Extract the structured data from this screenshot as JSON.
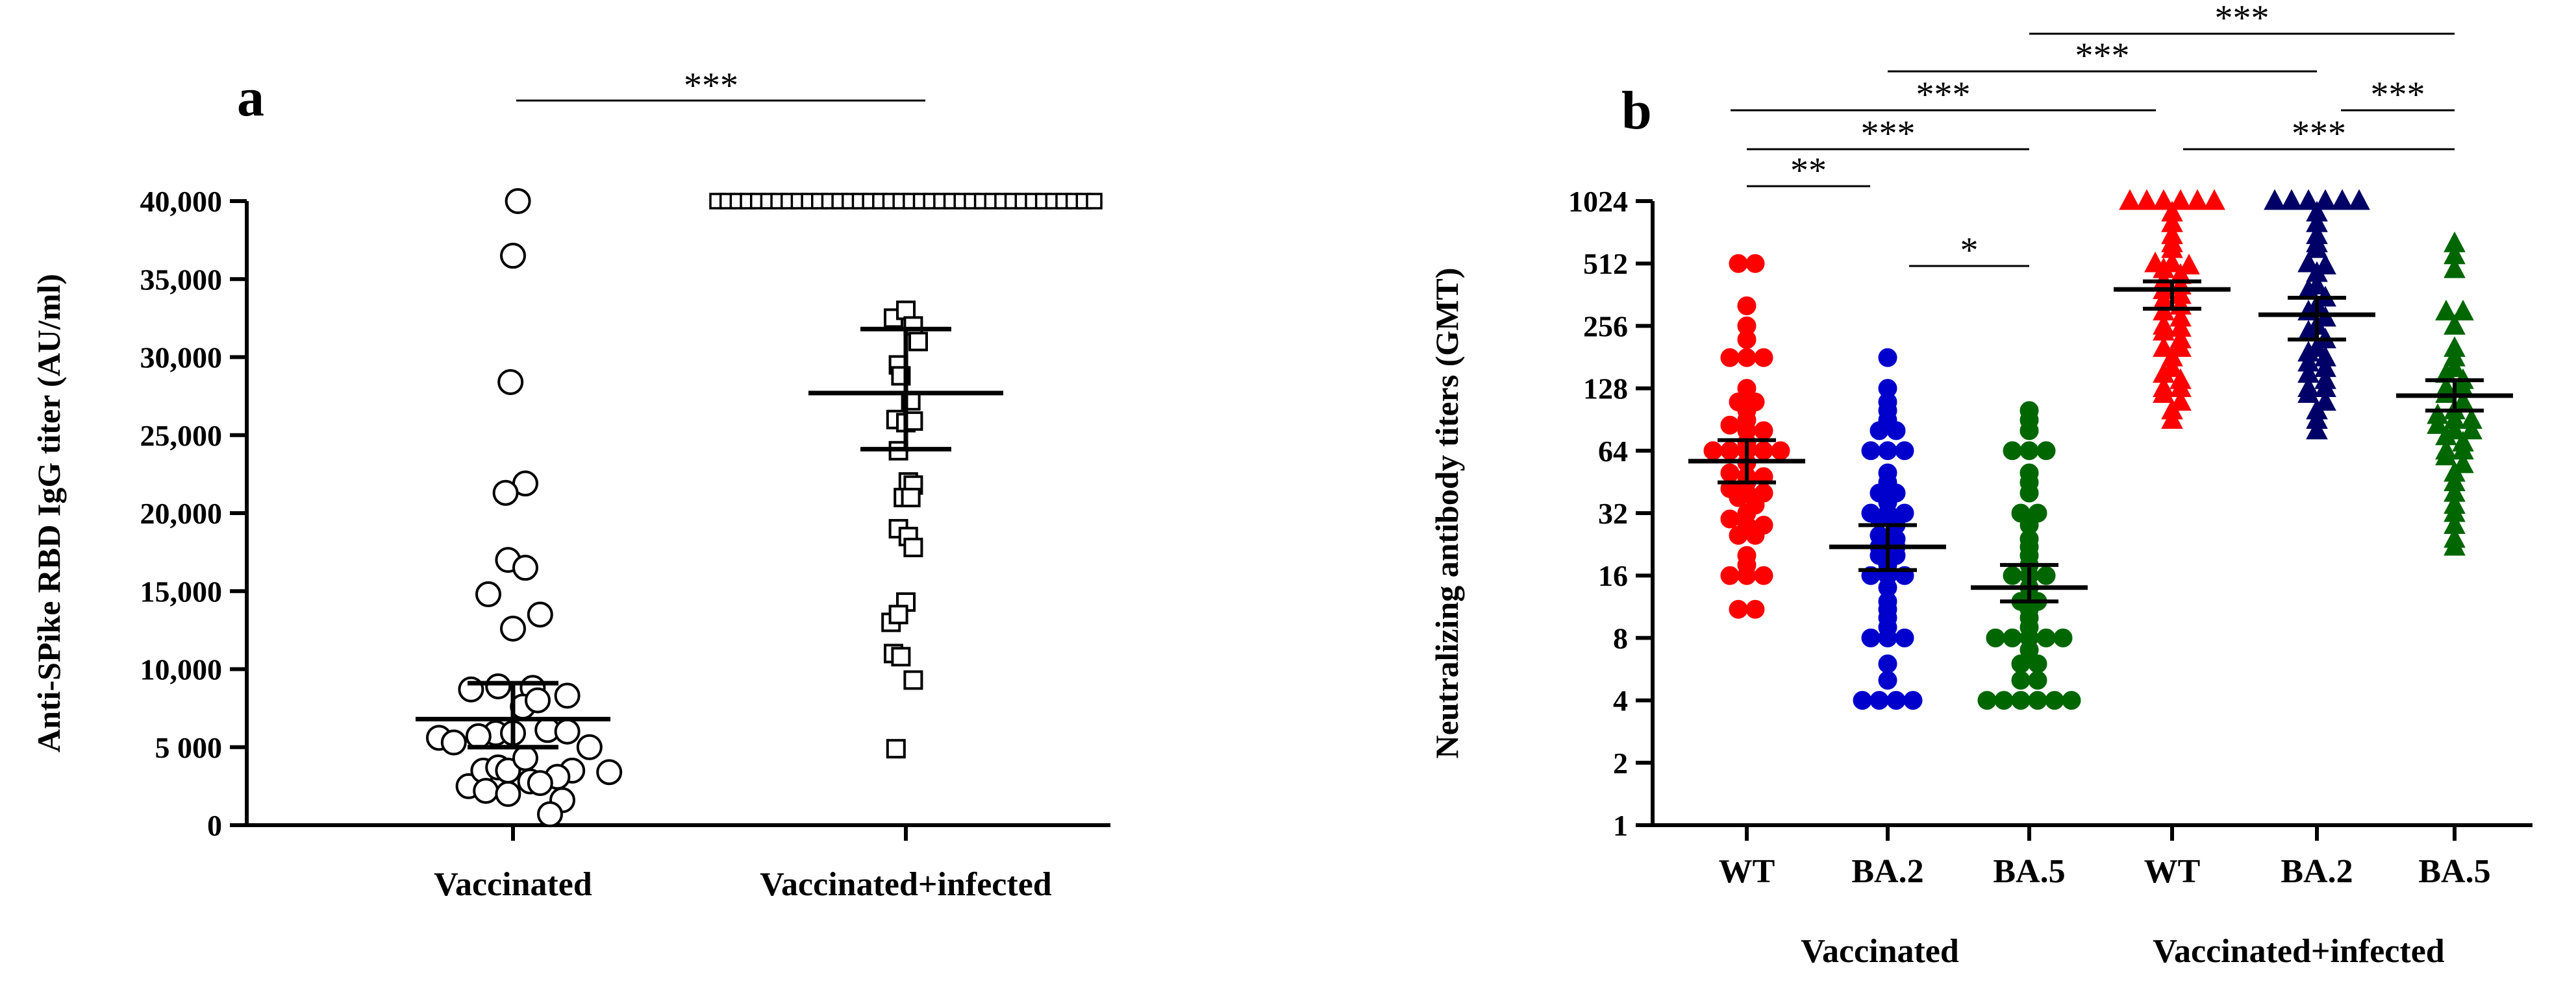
{
  "chart_data": [
    {
      "panel": "a",
      "type": "scatter",
      "ylabel": "Anti-SPike RBD IgG titer (AU/ml)",
      "ylim": [
        0,
        40000
      ],
      "yticks": [
        0,
        5000,
        10000,
        15000,
        20000,
        25000,
        30000,
        35000,
        40000
      ],
      "ytick_labels": [
        "0",
        "5 000",
        "10,000",
        "15,000",
        "20,000",
        "25,000",
        "30,000",
        "35,000",
        "40,000"
      ],
      "categories": [
        "Vaccinated",
        "Vaccinated+infected"
      ],
      "series": [
        {
          "name": "Vaccinated",
          "marker": "circle",
          "color": "#000000",
          "points": [
            [
              0.02,
              40000
            ],
            [
              0.0,
              36500
            ],
            [
              -0.01,
              28400
            ],
            [
              0.05,
              21900
            ],
            [
              -0.03,
              21300
            ],
            [
              -0.02,
              17000
            ],
            [
              0.05,
              16500
            ],
            [
              -0.1,
              14800
            ],
            [
              0.11,
              13500
            ],
            [
              0.0,
              12600
            ],
            [
              -0.17,
              8700
            ],
            [
              -0.06,
              8900
            ],
            [
              0.08,
              8800
            ],
            [
              -0.3,
              5600
            ],
            [
              -0.24,
              5300
            ],
            [
              -0.18,
              2500
            ],
            [
              -0.12,
              3500
            ],
            [
              -0.11,
              2200
            ],
            [
              -0.02,
              2000
            ],
            [
              -0.06,
              3700
            ],
            [
              -0.07,
              5900
            ],
            [
              0.0,
              5900
            ],
            [
              0.04,
              7600
            ],
            [
              0.1,
              8000
            ],
            [
              0.22,
              8300
            ],
            [
              0.14,
              6100
            ],
            [
              0.22,
              6000
            ],
            [
              0.31,
              5000
            ],
            [
              0.24,
              3500
            ],
            [
              0.39,
              3400
            ],
            [
              0.18,
              3100
            ],
            [
              0.07,
              2800
            ],
            [
              0.2,
              1600
            ],
            [
              0.11,
              2700
            ],
            [
              -0.02,
              3500
            ],
            [
              0.15,
              700
            ],
            [
              0.05,
              4300
            ],
            [
              -0.14,
              5700
            ]
          ],
          "mean": 6800,
          "error": [
            5000,
            9100
          ]
        },
        {
          "name": "Vaccinated+infected",
          "marker": "square",
          "color": "#000000",
          "saturated_count": 38,
          "saturated_value": 40000,
          "points": [
            [
              -0.05,
              32500
            ],
            [
              0.0,
              33000
            ],
            [
              0.03,
              32000
            ],
            [
              0.05,
              31000
            ],
            [
              -0.03,
              29500
            ],
            [
              -0.02,
              28800
            ],
            [
              0.02,
              27200
            ],
            [
              -0.04,
              26000
            ],
            [
              0.0,
              25800
            ],
            [
              0.03,
              25900
            ],
            [
              -0.03,
              24000
            ],
            [
              0.01,
              22000
            ],
            [
              0.03,
              21800
            ],
            [
              -0.01,
              21000
            ],
            [
              0.02,
              21000
            ],
            [
              -0.03,
              19000
            ],
            [
              0.01,
              18500
            ],
            [
              0.03,
              17800
            ],
            [
              0.0,
              14300
            ],
            [
              -0.06,
              13000
            ],
            [
              -0.03,
              13500
            ],
            [
              -0.05,
              11000
            ],
            [
              -0.02,
              10800
            ],
            [
              0.03,
              9300
            ],
            [
              -0.04,
              4900
            ]
          ],
          "mean": 27700,
          "error": [
            24100,
            31800
          ]
        }
      ],
      "significance": [
        {
          "groups": [
            "Vaccinated",
            "Vaccinated+infected"
          ],
          "label": "***"
        }
      ]
    },
    {
      "panel": "b",
      "type": "scatter",
      "yscale": "log2",
      "ylabel": "Neutralizing antibody titers (GMT)",
      "ylim": [
        1,
        1024
      ],
      "yticks": [
        1,
        2,
        4,
        8,
        16,
        32,
        64,
        128,
        256,
        512,
        1024
      ],
      "ytick_labels": [
        "1",
        "2",
        "4",
        "8",
        "16",
        "32",
        "64",
        "128",
        "256",
        "512",
        "1024"
      ],
      "categories": [
        "WT",
        "BA.2",
        "BA.5",
        "WT",
        "BA.2",
        "BA.5"
      ],
      "group_labels": [
        "Vaccinated",
        "Vaccinated+infected"
      ],
      "series": [
        {
          "name": "Vaccinated WT",
          "marker": "circle",
          "color": "#ff0000",
          "mean": 57,
          "error": [
            45,
            72
          ],
          "values": [
            512,
            512,
            320,
            256,
            220,
            180,
            180,
            180,
            128,
            110,
            110,
            100,
            90,
            85,
            80,
            80,
            70,
            64,
            64,
            64,
            64,
            64,
            56,
            50,
            48,
            48,
            45,
            42,
            40,
            40,
            38,
            35,
            32,
            30,
            28,
            28,
            25,
            25,
            20,
            18,
            16,
            16,
            16,
            11,
            11
          ]
        },
        {
          "name": "Vaccinated BA.2",
          "marker": "circle",
          "color": "#0000cc",
          "mean": 22,
          "error": [
            17,
            28
          ],
          "values": [
            180,
            128,
            110,
            100,
            90,
            80,
            80,
            64,
            64,
            64,
            50,
            45,
            40,
            40,
            36,
            32,
            32,
            32,
            30,
            28,
            25,
            24,
            22,
            22,
            20,
            20,
            18,
            16,
            16,
            16,
            14,
            12,
            11,
            10,
            9,
            8,
            8,
            8,
            6,
            5,
            4,
            4,
            4,
            4
          ]
        },
        {
          "name": "Vaccinated BA.5",
          "marker": "circle",
          "color": "#006600",
          "mean": 14,
          "error": [
            12,
            18
          ],
          "values": [
            100,
            90,
            80,
            64,
            64,
            64,
            50,
            45,
            40,
            32,
            32,
            28,
            24,
            22,
            20,
            18,
            16,
            16,
            16,
            14,
            12,
            12,
            11,
            10,
            9,
            8,
            8,
            8,
            8,
            8,
            7,
            6,
            6,
            5,
            5,
            4,
            4,
            4,
            4,
            4,
            4
          ]
        },
        {
          "name": "Vaccinated+infected WT",
          "marker": "triangle",
          "color": "#ff0000",
          "mean": 384,
          "error": [
            310,
            420
          ],
          "values": [
            1024,
            1024,
            1024,
            1024,
            1024,
            1024,
            900,
            800,
            700,
            640,
            600,
            512,
            512,
            500,
            480,
            450,
            420,
            400,
            380,
            360,
            340,
            320,
            300,
            280,
            256,
            250,
            240,
            220,
            200,
            200,
            180,
            160,
            150,
            140,
            128,
            128,
            120,
            110,
            100,
            90
          ]
        },
        {
          "name": "Vaccinated+infected BA.2",
          "marker": "triangle",
          "color": "#000066",
          "mean": 290,
          "error": [
            220,
            350
          ],
          "values": [
            1024,
            1024,
            1024,
            1024,
            1024,
            1024,
            900,
            800,
            700,
            640,
            600,
            512,
            500,
            460,
            400,
            380,
            350,
            320,
            300,
            280,
            256,
            240,
            220,
            200,
            190,
            180,
            170,
            160,
            150,
            140,
            128,
            128,
            120,
            110,
            100,
            90,
            80
          ]
        },
        {
          "name": "Vaccinated+infected BA.5",
          "marker": "triangle",
          "color": "#006600",
          "mean": 118,
          "error": [
            100,
            140
          ],
          "values": [
            640,
            560,
            480,
            300,
            300,
            256,
            200,
            180,
            160,
            150,
            140,
            128,
            128,
            120,
            110,
            100,
            95,
            90,
            90,
            85,
            80,
            80,
            75,
            70,
            64,
            64,
            60,
            55,
            50,
            45,
            40,
            35,
            32,
            28,
            24,
            22
          ]
        }
      ],
      "significance": [
        {
          "from": 0,
          "to": 1,
          "label": "**"
        },
        {
          "from": 1,
          "to": 2,
          "label": "*"
        },
        {
          "from": 0,
          "to": 2,
          "label": "***"
        },
        {
          "from": 0,
          "to": 3,
          "label": "***"
        },
        {
          "from": 1,
          "to": 4,
          "label": "***"
        },
        {
          "from": 2,
          "to": 5,
          "label": "***"
        },
        {
          "from": 3,
          "to": 5,
          "label": "***"
        },
        {
          "from": 4,
          "to": 5,
          "label": "***"
        }
      ]
    }
  ]
}
